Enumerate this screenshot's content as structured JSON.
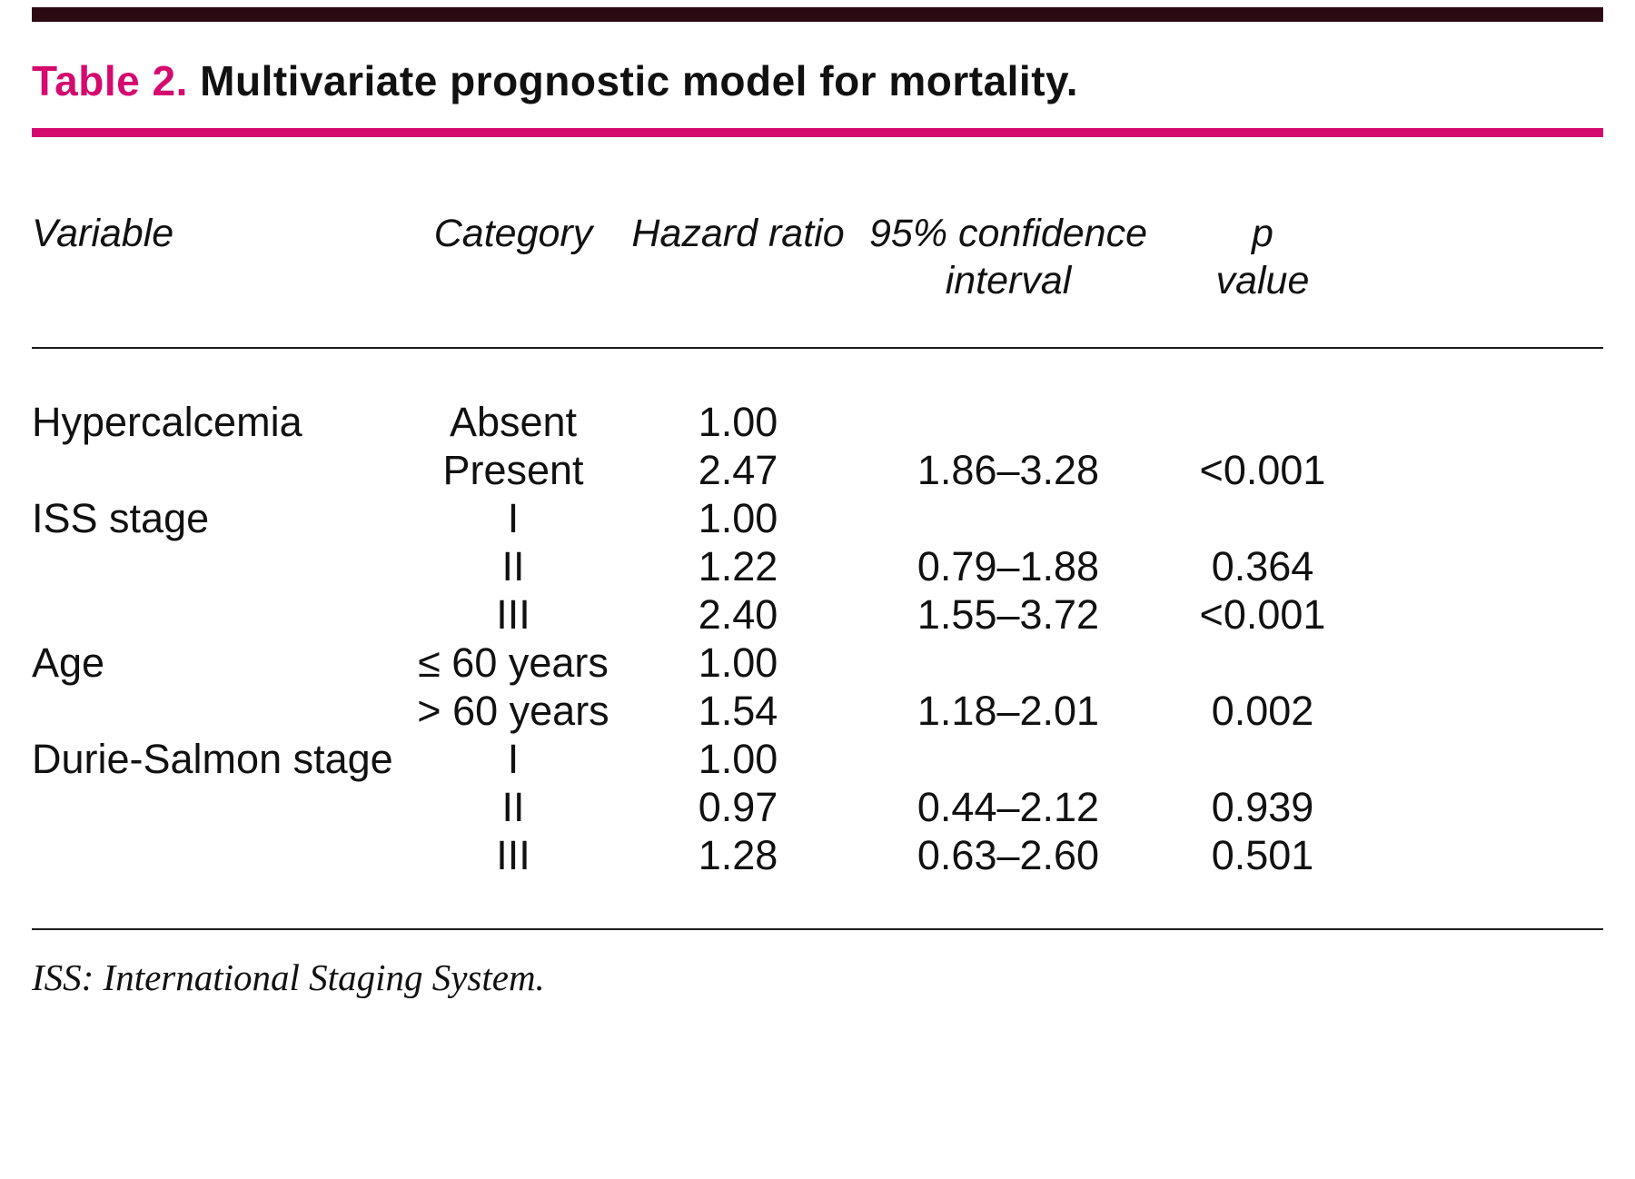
{
  "title": {
    "label": "Table 2.",
    "text": " Multivariate prognostic model for mortality."
  },
  "colors": {
    "magenta": "#d40a6e",
    "top_bar": "#2b0a14",
    "rule_dark": "#1a1a1a"
  },
  "header": {
    "variable": "Variable",
    "category": "Category",
    "hazard_ratio": "Hazard ratio",
    "ci": "95% confidence\ninterval",
    "p": "p\nvalue"
  },
  "rows": [
    {
      "variable": "Hypercalcemia",
      "category": "Absent",
      "hr": "1.00",
      "ci": "",
      "p": ""
    },
    {
      "variable": "",
      "category": "Present",
      "hr": "2.47",
      "ci": "1.86–3.28",
      "p": "<0.001"
    },
    {
      "variable": "ISS stage",
      "category": "I",
      "hr": "1.00",
      "ci": "",
      "p": ""
    },
    {
      "variable": "",
      "category": "II",
      "hr": "1.22",
      "ci": "0.79–1.88",
      "p": "0.364"
    },
    {
      "variable": "",
      "category": "III",
      "hr": "2.40",
      "ci": "1.55–3.72",
      "p": "<0.001"
    },
    {
      "variable": "Age",
      "category": "≤ 60 years",
      "hr": "1.00",
      "ci": "",
      "p": ""
    },
    {
      "variable": "",
      "category": "> 60 years",
      "hr": "1.54",
      "ci": "1.18–2.01",
      "p": "0.002"
    },
    {
      "variable": "Durie-Salmon stage",
      "category": "I",
      "hr": "1.00",
      "ci": "",
      "p": ""
    },
    {
      "variable": "",
      "category": "II",
      "hr": "0.97",
      "ci": "0.44–2.12",
      "p": "0.939"
    },
    {
      "variable": "",
      "category": "III",
      "hr": "1.28",
      "ci": "0.63–2.60",
      "p": "0.501"
    }
  ],
  "footnote": "ISS: International Staging System."
}
